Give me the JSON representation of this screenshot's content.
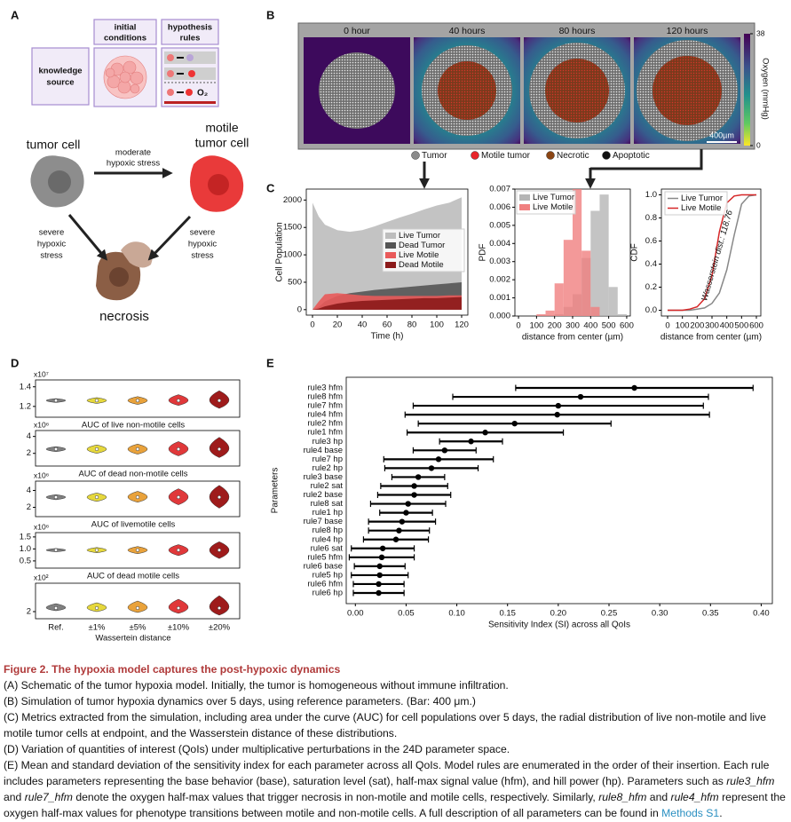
{
  "panel_a": {
    "letter": "A",
    "initial_conditions": [
      "initial",
      "conditions"
    ],
    "hypothesis_rules": [
      "hypothesis",
      "rules"
    ],
    "knowledge_source": [
      "knowledge",
      "source"
    ],
    "tumor_cell": "tumor cell",
    "motile_tumor_cell": [
      "motile",
      "tumor cell"
    ],
    "moderate_stress": [
      "moderate",
      "hypoxic stress"
    ],
    "severe_stress_left": [
      "severe",
      "hypoxic",
      "stress"
    ],
    "severe_stress_right": [
      "severe",
      "hypoxic",
      "stress"
    ],
    "necrosis": "necrosis",
    "o2": "O₂"
  },
  "panel_b": {
    "letter": "B",
    "timepoints": [
      "0 hour",
      "40 hours",
      "80 hours",
      "120 hours"
    ],
    "colorbar": {
      "label": "Oxygen (mmHg)",
      "ticks": [
        0,
        38
      ],
      "clim": [
        0,
        38
      ]
    },
    "scale_bar": "400µm",
    "legend": [
      "Tumor",
      "Motile tumor",
      "Necrotic",
      "Apoptotic"
    ]
  },
  "panel_c": {
    "letter": "C"
  },
  "panel_d": {
    "letter": "D"
  },
  "panel_e": {
    "letter": "E"
  },
  "chart_data": [
    {
      "type": "area",
      "x": [
        0,
        5,
        10,
        20,
        30,
        40,
        50,
        60,
        70,
        80,
        90,
        100,
        110,
        120
      ],
      "series": [
        {
          "name": "Live Tumor",
          "color": "#bdbdbd",
          "values": [
            1950,
            1700,
            1550,
            1450,
            1420,
            1450,
            1520,
            1600,
            1680,
            1750,
            1830,
            1900,
            1950,
            2050
          ]
        },
        {
          "name": "Dead Tumor",
          "color": "#555555",
          "values": [
            0,
            50,
            150,
            250,
            300,
            330,
            360,
            380,
            400,
            420,
            440,
            460,
            480,
            500
          ]
        },
        {
          "name": "Live Motile",
          "color": "#e95a5a",
          "values": [
            0,
            150,
            280,
            300,
            280,
            260,
            250,
            250,
            250,
            250,
            250,
            250,
            260,
            260
          ]
        },
        {
          "name": "Dead Motile",
          "color": "#8b1a1a",
          "values": [
            0,
            20,
            60,
            110,
            140,
            160,
            170,
            180,
            190,
            200,
            210,
            210,
            220,
            230
          ]
        }
      ],
      "xlim": [
        -5,
        125
      ],
      "ylim": [
        -100,
        2200
      ],
      "xticks": [
        0,
        20,
        40,
        60,
        80,
        100,
        120
      ],
      "yticks": [
        0,
        500,
        1000,
        1500,
        2000
      ],
      "xlabel": "Time (h)",
      "ylabel": "Cell Population"
    },
    {
      "type": "histogram",
      "bins": [
        100,
        150,
        200,
        250,
        300,
        350,
        400,
        450,
        500,
        550,
        600
      ],
      "series": [
        {
          "name": "Live Tumor",
          "color": "#b5b5b5",
          "values": [
            0,
            0,
            0.0001,
            0.0005,
            0.0012,
            0.0032,
            0.0058,
            0.0067,
            0.0016,
            0.0001
          ]
        },
        {
          "name": "Live Motile",
          "color": "#f08080",
          "values": [
            0.0001,
            0.0003,
            0.0018,
            0.0042,
            0.007,
            0.0036,
            0.0005,
            0,
            0,
            0
          ]
        }
      ],
      "xlim": [
        -20,
        620
      ],
      "ylim": [
        0,
        0.007
      ],
      "xticks": [
        0,
        100,
        200,
        300,
        400,
        500,
        600
      ],
      "yticks": [
        {
          "value": 0,
          "label": "0.000"
        },
        0.001,
        0.002,
        0.003,
        0.004,
        0.005,
        0.006,
        0.007
      ],
      "xlabel": "distance from center (µm)",
      "ylabel": "PDF"
    },
    {
      "type": "line",
      "x": [
        0,
        50,
        100,
        150,
        200,
        250,
        300,
        350,
        400,
        450,
        500,
        550,
        600
      ],
      "series": [
        {
          "name": "Live Tumor",
          "color": "#888888",
          "values": [
            0,
            0,
            0,
            0,
            0.01,
            0.02,
            0.06,
            0.15,
            0.35,
            0.65,
            0.92,
            0.99,
            1
          ]
        },
        {
          "name": "Live Motile",
          "color": "#d62728",
          "values": [
            0,
            0,
            0,
            0.01,
            0.03,
            0.1,
            0.3,
            0.68,
            0.93,
            0.99,
            1,
            1,
            1
          ]
        }
      ],
      "xlim": [
        -42,
        630
      ],
      "ylim": [
        -0.05,
        1.05
      ],
      "xticks": [
        0,
        100,
        200,
        300,
        400,
        500,
        600
      ],
      "yticks": [
        {
          "value": 0,
          "label": "0.0"
        },
        0.2,
        0.4,
        0.6,
        0.8,
        {
          "value": 1,
          "label": "1.0"
        }
      ],
      "annotation": "Wasserstein dist.: 118.76",
      "xlabel": "distance from center (µm)",
      "ylabel": "CDF"
    },
    {
      "type": "violin",
      "scale_label": "x10⁷",
      "colors": [
        "#808080",
        "#e6d83c",
        "#e9a23b",
        "#e0383a",
        "#9e1b1b"
      ],
      "values": [
        1.26,
        1.26,
        1.26,
        1.26,
        1.26
      ],
      "low": [
        1.24,
        1.23,
        1.22,
        1.21,
        1.18
      ],
      "high": [
        1.28,
        1.29,
        1.3,
        1.32,
        1.36
      ],
      "ylim": [
        1.09,
        1.47
      ],
      "yticks": [
        1.2,
        1.4
      ],
      "xlabel": "AUC of live non-motile cells"
    },
    {
      "type": "violin",
      "scale_label": "x10⁶",
      "colors": [
        "#808080",
        "#e6d83c",
        "#e9a23b",
        "#e0383a",
        "#9e1b1b"
      ],
      "values": [
        2.5,
        2.5,
        2.5,
        2.5,
        2.5
      ],
      "low": [
        2.2,
        2,
        1.9,
        1.7,
        1.5
      ],
      "high": [
        2.8,
        3,
        3.1,
        3.4,
        3.9
      ],
      "ylim": [
        0.5,
        4.7
      ],
      "yticks": [
        2,
        4
      ],
      "xlabel": "AUC of dead non-motile cells"
    },
    {
      "type": "violin",
      "scale_label": "x10⁶",
      "colors": [
        "#808080",
        "#e6d83c",
        "#e9a23b",
        "#e0383a",
        "#9e1b1b"
      ],
      "values": [
        3.2,
        3.2,
        3.2,
        3.2,
        3.2
      ],
      "low": [
        2.9,
        2.7,
        2.6,
        2.3,
        1.9
      ],
      "high": [
        3.5,
        3.7,
        3.9,
        4.2,
        4.6
      ],
      "ylim": [
        0.9,
        5.1
      ],
      "yticks": [
        2,
        4
      ],
      "xlabel": "AUC of livemotile cells"
    },
    {
      "type": "violin",
      "scale_label": "x10⁶",
      "colors": [
        "#808080",
        "#e6d83c",
        "#e9a23b",
        "#e0383a",
        "#9e1b1b"
      ],
      "values": [
        0.95,
        0.95,
        0.95,
        0.95,
        0.95
      ],
      "low": [
        0.88,
        0.84,
        0.8,
        0.72,
        0.6
      ],
      "high": [
        1.02,
        1.06,
        1.1,
        1.18,
        1.3
      ],
      "ylim": [
        0.2,
        1.68
      ],
      "yticks": [
        0.5,
        {
          "value": 1,
          "label": "1.0"
        },
        1.5
      ],
      "xlabel": "AUC of dead motile cells"
    },
    {
      "type": "violin",
      "scale_label": "x10²",
      "colors": [
        "#808080",
        "#e6d83c",
        "#e9a23b",
        "#e0383a",
        "#9e1b1b"
      ],
      "categories": [
        "Ref.",
        "±1%",
        "±5%",
        "±10%",
        "±20%"
      ],
      "values": [
        2.2,
        2.2,
        2.2,
        2.2,
        2.2
      ],
      "low": [
        2.05,
        2,
        1.95,
        1.9,
        1.8
      ],
      "high": [
        2.45,
        2.5,
        2.6,
        2.7,
        2.9
      ],
      "ylim": [
        1.6,
        3.6
      ],
      "yticks": [
        2
      ],
      "xlabel": "Wassertein distance"
    },
    {
      "type": "errorbar",
      "color": "#000000",
      "categories": [
        "rule3 hfm",
        "rule8 hfm",
        "rule7 hfm",
        "rule4 hfm",
        "rule2 hfm",
        "rule1 hfm",
        "rule3 hp",
        "rule4 base",
        "rule7 hp",
        "rule2 hp",
        "rule3 base",
        "rule2 sat",
        "rule2 base",
        "rule8 sat",
        "rule1 hp",
        "rule7 base",
        "rule8 hp",
        "rule4 hp",
        "rule6 sat",
        "rule5 hfm",
        "rule6 base",
        "rule5 hp",
        "rule6 hfm",
        "rule6 hp"
      ],
      "values": [
        0.275,
        0.222,
        0.2,
        0.199,
        0.157,
        0.128,
        0.114,
        0.088,
        0.082,
        0.075,
        0.062,
        0.058,
        0.058,
        0.052,
        0.05,
        0.046,
        0.043,
        0.04,
        0.027,
        0.026,
        0.024,
        0.024,
        0.023,
        0.023
      ],
      "errors": [
        0.117,
        0.126,
        0.143,
        0.15,
        0.095,
        0.077,
        0.031,
        0.031,
        0.054,
        0.046,
        0.026,
        0.033,
        0.036,
        0.037,
        0.026,
        0.033,
        0.03,
        0.032,
        0.031,
        0.032,
        0.025,
        0.028,
        0.025,
        0.025
      ],
      "xlim": [
        -0.009,
        0.411
      ],
      "xticks": [
        {
          "value": 0,
          "label": "0.00"
        },
        0.05,
        {
          "value": 0.1,
          "label": "0.10"
        },
        0.15,
        {
          "value": 0.2,
          "label": "0.20"
        },
        0.25,
        {
          "value": 0.3,
          "label": "0.30"
        },
        0.35,
        {
          "value": 0.4,
          "label": "0.40"
        }
      ],
      "xlabel": "Sensitivity Index (SI) across all QoIs",
      "ylabel": "Parameters"
    }
  ],
  "caption": {
    "title": "Figure 2. The hypoxia model captures the post-hypoxic dynamics",
    "A": "(A) Schematic of the tumor hypoxia model. Initially, the tumor is homogeneous without immune infiltration.",
    "B": "(B) Simulation of tumor hypoxia dynamics over 5 days, using reference parameters. (Bar: 400 μm.)",
    "C": "(C) Metrics extracted from the simulation, including area under the curve (AUC) for cell populations over 5 days, the radial distribution of live non-motile and live motile tumor cells at endpoint, and the Wasserstein distance of these distributions.",
    "D": "(D) Variation of quantities of interest (QoIs) under multiplicative perturbations in the 24D parameter space.",
    "E": [
      "(E) Mean and standard deviation of the sensitivity index for each parameter across all QoIs. Model rules are enumerated in the order of their insertion. Each rule includes parameters representing the base behavior (base), saturation level (sat), half-max signal value (hfm), and hill power (hp). Parameters such as ",
      "rule3_hfm",
      " and ",
      "rule7_hfm",
      " denote the oxygen half-max values that trigger necrosis in non-motile and motile cells, respectively. Similarly, ",
      "rule8_hfm",
      " and ",
      "rule4_hfm",
      " represent the oxygen half-max values for phenotype transitions between motile and non-motile cells. A full description of all parameters can be found in ",
      "Methods S1",
      "."
    ]
  }
}
